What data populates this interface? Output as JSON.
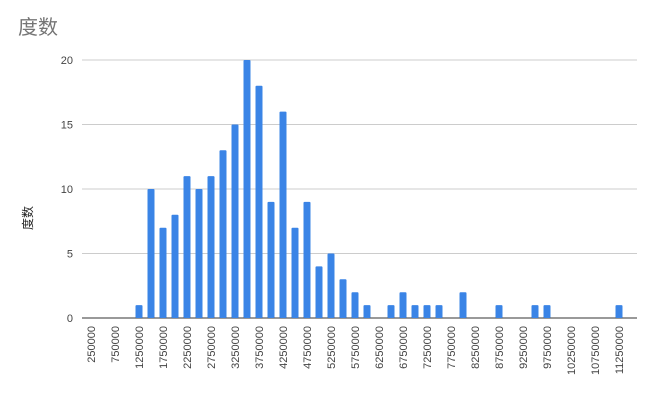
{
  "chart_data": {
    "type": "bar",
    "title": "度数",
    "y_label": "度数",
    "categories": [
      "250000",
      null,
      "750000",
      null,
      "1250000",
      null,
      "1750000",
      null,
      "2250000",
      null,
      "2750000",
      null,
      "3250000",
      null,
      "3750000",
      null,
      "4250000",
      null,
      "4750000",
      null,
      "5250000",
      null,
      "5750000",
      null,
      "6250000",
      null,
      "6750000",
      null,
      "7250000",
      null,
      "7750000",
      null,
      "8250000",
      null,
      "8750000",
      null,
      "9250000",
      null,
      "9750000",
      null,
      "10250000",
      null,
      "10750000",
      null,
      "11250000"
    ],
    "values": [
      0,
      0,
      0,
      0,
      1,
      10,
      7,
      8,
      11,
      10,
      11,
      13,
      15,
      20,
      18,
      9,
      16,
      7,
      9,
      4,
      5,
      3,
      2,
      1,
      0,
      1,
      2,
      1,
      1,
      1,
      0,
      2,
      0,
      0,
      1,
      0,
      0,
      1,
      1,
      0,
      0,
      0,
      0,
      0,
      1
    ],
    "color": "#3a84e6",
    "ylim": [
      0,
      20
    ],
    "yticks": [
      0,
      5,
      10,
      15,
      20
    ],
    "grid": true
  }
}
